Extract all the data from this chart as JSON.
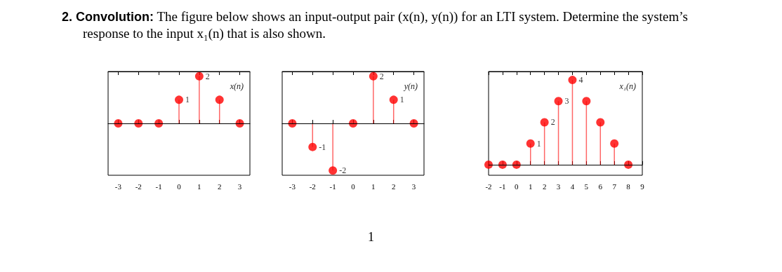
{
  "chart_data": [
    {
      "type": "lollipop",
      "title": "x(n)",
      "annotations": [
        "2. Convolution:",
        "The figure below shows an input-output pair (x(n), y(n)) for an LTI system. Determine the system’s response to the input x₁(n) that is also shown.",
        "1"
      ],
      "x": [
        -3,
        -2,
        -1,
        0,
        1,
        2,
        3
      ],
      "values": [
        0,
        0,
        0,
        1,
        2,
        1,
        0
      ],
      "value_labels": [
        null,
        null,
        null,
        "1",
        "2",
        null,
        null
      ],
      "color": "#ff0000",
      "xlim": [
        -3.5,
        3.5
      ],
      "xticks": [
        -3,
        -2,
        -1,
        0,
        1,
        2,
        3
      ],
      "ylim": [
        -2.2,
        2.2
      ],
      "tick_labels": "x",
      "marker": "circle",
      "ref_lines": [
        {
          "axis": "y",
          "value": 0
        }
      ]
    },
    {
      "type": "lollipop",
      "title": "y(n)",
      "x": [
        -3,
        -2,
        -1,
        0,
        1,
        2,
        3
      ],
      "values": [
        0,
        -1,
        -2,
        0,
        2,
        1,
        0
      ],
      "value_labels": [
        null,
        "-1",
        "-2",
        null,
        "2",
        "1",
        null
      ],
      "color": "#ff0000",
      "xlim": [
        -3.5,
        3.5
      ],
      "xticks": [
        -3,
        -2,
        -1,
        0,
        1,
        2,
        3
      ],
      "ylim": [
        -2.2,
        2.2
      ],
      "tick_labels": "x",
      "marker": "circle",
      "ref_lines": [
        {
          "axis": "y",
          "value": 0
        }
      ]
    },
    {
      "type": "lollipop",
      "title": "x₁(n)",
      "x": [
        -2,
        -1,
        0,
        1,
        2,
        3,
        4,
        5,
        6,
        7,
        8
      ],
      "values": [
        0,
        0,
        0,
        1,
        2,
        3,
        4,
        3,
        2,
        1,
        0
      ],
      "value_labels": [
        null,
        null,
        null,
        "1",
        "2",
        "3",
        "4",
        null,
        null,
        null,
        null
      ],
      "color": "#ff0000",
      "xlim": [
        -2,
        9
      ],
      "xticks": [
        -2,
        -1,
        0,
        1,
        2,
        3,
        4,
        5,
        6,
        7,
        8,
        9
      ],
      "ylim": [
        -0.5,
        4.4
      ],
      "tick_labels": "x",
      "marker": "circle",
      "ref_lines": [
        {
          "axis": "y",
          "value": 0
        }
      ]
    }
  ]
}
